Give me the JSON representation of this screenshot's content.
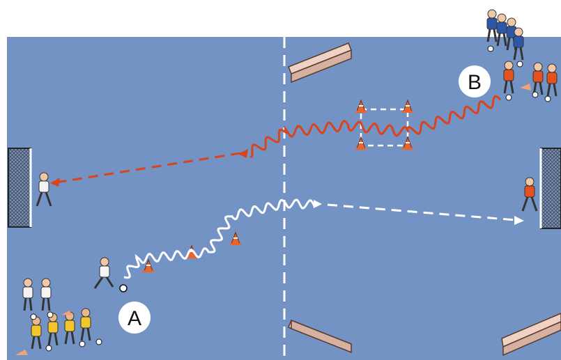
{
  "markers": [
    {
      "id": "A",
      "label": "A"
    },
    {
      "id": "B",
      "label": "B"
    }
  ],
  "colors": {
    "field": "#7393c4",
    "white_team": "#f4f4f4",
    "yellow_team": "#f3c62c",
    "orange_team": "#e4521f",
    "blue_team": "#2d58a8",
    "dribble_white": "#ffffff",
    "dribble_orange": "#d9441c",
    "cone": "#e8652c",
    "barrier": "#f0d2c4"
  },
  "icons": [
    "goal-icon",
    "cone-icon",
    "barrier-icon",
    "player-icon",
    "ball-icon"
  ]
}
